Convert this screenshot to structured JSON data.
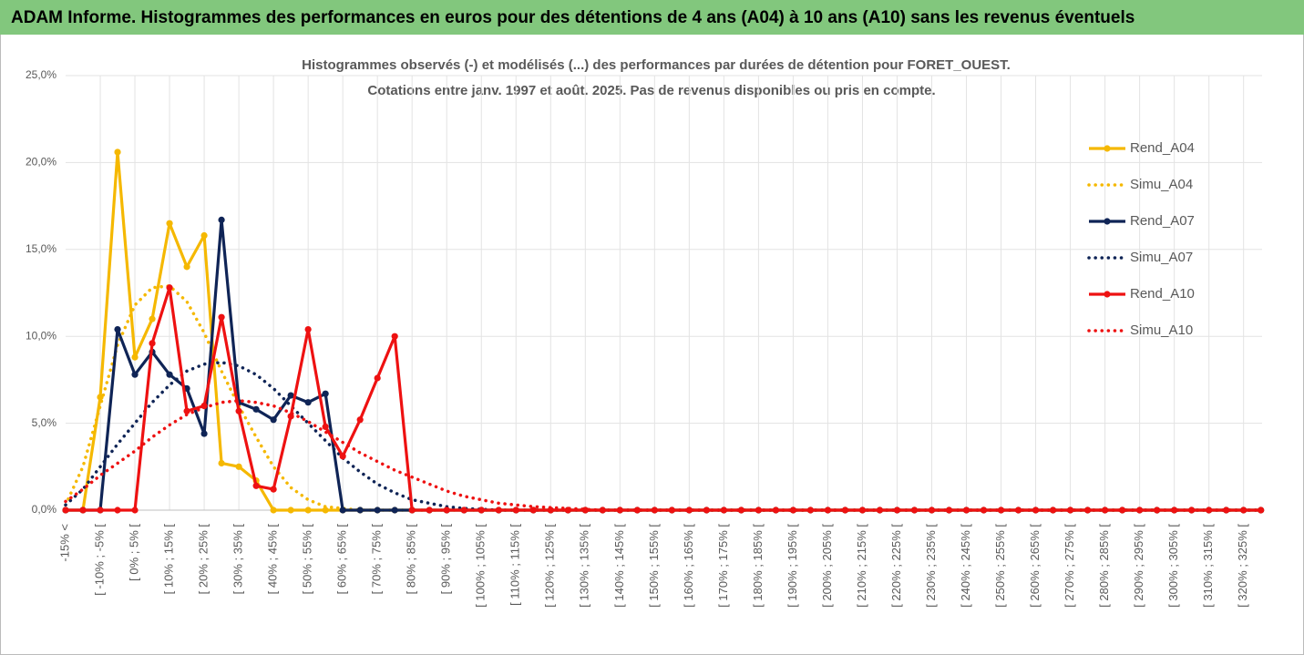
{
  "chart_data": {
    "type": "line",
    "header": "ADAM Informe. Histogrammes des performances en euros pour des détentions de 4 ans (A04) à 10 ans (A10) sans les revenus éventuels",
    "title": [
      "Histogrammes observés (-) et modélisés (...) des performances par durées de détention pour FORET_OUEST.",
      "Cotations entre janv. 1997 et août. 2025. Pas de revenus disponibles ou pris en compte."
    ],
    "categories": [
      "-15% <",
      null,
      "[ -10% ; -5% [",
      null,
      "[ 0% ; 5% [",
      null,
      "[ 10% ; 15% [",
      null,
      "[ 20% ; 25% [",
      null,
      "[ 30% ; 35% [",
      null,
      "[ 40% ; 45% [",
      null,
      "[ 50% ; 55% [",
      null,
      "[ 60% ; 65% [",
      null,
      "[ 70% ; 75% [",
      null,
      "[ 80% ; 85% [",
      null,
      "[ 90% ; 95% [",
      null,
      "[ 100% ; 105% [",
      null,
      "[ 110% ; 115% [",
      null,
      "[ 120% ; 125% [",
      null,
      "[ 130% ; 135% [",
      null,
      "[ 140% ; 145% [",
      null,
      "[ 150% ; 155% [",
      null,
      "[ 160% ; 165% [",
      null,
      "[ 170% ; 175% [",
      null,
      "[ 180% ; 185% [",
      null,
      "[ 190% ; 195% [",
      null,
      "[ 200% ; 205% [",
      null,
      "[ 210% ; 215% [",
      null,
      "[ 220% ; 225% [",
      null,
      "[ 230% ; 235% [",
      null,
      "[ 240% ; 245% [",
      null,
      "[ 250% ; 255% [",
      null,
      "[ 260% ; 265% [",
      null,
      "[ 270% ; 275% [",
      null,
      "[ 280% ; 285% [",
      null,
      "[ 290% ; 295% [",
      null,
      "[ 300% ; 305% [",
      null,
      "[ 310% ; 315% [",
      null,
      "[ 320% ; 325% [",
      null
    ],
    "series": [
      {
        "name": "Rend_A04",
        "color": "#f5b800",
        "style": "solid",
        "marker": true,
        "values": [
          0,
          0,
          6.5,
          20.6,
          8.8,
          11.0,
          16.5,
          14.0,
          15.8,
          2.7,
          2.5,
          1.7,
          0,
          0,
          0,
          0,
          0,
          0,
          0,
          0,
          0,
          0,
          0,
          0,
          0,
          0,
          0,
          0,
          0,
          0,
          0,
          0,
          0,
          0,
          0,
          0,
          0,
          0,
          0,
          0,
          0,
          0,
          0,
          0,
          0,
          0,
          0,
          0,
          0,
          0,
          0,
          0,
          0,
          0,
          0,
          0,
          0,
          0,
          0,
          0,
          0,
          0,
          0,
          0,
          0,
          0,
          0,
          0,
          0,
          0
        ]
      },
      {
        "name": "Simu_A04",
        "color": "#f5b800",
        "style": "dotted",
        "marker": false,
        "values": [
          0.3,
          2.5,
          6.0,
          9.5,
          11.8,
          12.8,
          12.9,
          12.0,
          10.2,
          8.0,
          6.0,
          4.2,
          2.5,
          1.3,
          0.6,
          0.2,
          0.1,
          0,
          0,
          0,
          0,
          0,
          0,
          0,
          0,
          0,
          0,
          0,
          0,
          0,
          0,
          0,
          0,
          0,
          0,
          0,
          0,
          0,
          0,
          0,
          0,
          0,
          0,
          0,
          0,
          0,
          0,
          0,
          0,
          0,
          0,
          0,
          0,
          0,
          0,
          0,
          0,
          0,
          0,
          0,
          0,
          0,
          0,
          0,
          0,
          0,
          0,
          0,
          0,
          0
        ]
      },
      {
        "name": "Rend_A07",
        "color": "#0f2456",
        "style": "solid",
        "marker": true,
        "values": [
          0,
          0,
          0,
          10.4,
          7.8,
          9.1,
          7.8,
          7.0,
          4.4,
          16.7,
          6.2,
          5.8,
          5.2,
          6.6,
          6.2,
          6.7,
          0,
          0,
          0,
          0,
          0,
          0,
          0,
          0,
          0,
          0,
          0,
          0,
          0,
          0,
          0,
          0,
          0,
          0,
          0,
          0,
          0,
          0,
          0,
          0,
          0,
          0,
          0,
          0,
          0,
          0,
          0,
          0,
          0,
          0,
          0,
          0,
          0,
          0,
          0,
          0,
          0,
          0,
          0,
          0,
          0,
          0,
          0,
          0,
          0,
          0,
          0,
          0,
          0,
          0
        ]
      },
      {
        "name": "Simu_A07",
        "color": "#0f2456",
        "style": "dotted",
        "marker": false,
        "values": [
          0.3,
          1.2,
          2.5,
          3.8,
          5.0,
          6.2,
          7.2,
          8.0,
          8.4,
          8.5,
          8.3,
          7.8,
          7.0,
          6.0,
          5.0,
          4.0,
          3.0,
          2.2,
          1.5,
          1.0,
          0.6,
          0.4,
          0.2,
          0.1,
          0.05,
          0,
          0,
          0,
          0,
          0,
          0,
          0,
          0,
          0,
          0,
          0,
          0,
          0,
          0,
          0,
          0,
          0,
          0,
          0,
          0,
          0,
          0,
          0,
          0,
          0,
          0,
          0,
          0,
          0,
          0,
          0,
          0,
          0,
          0,
          0,
          0,
          0,
          0,
          0,
          0,
          0,
          0,
          0,
          0,
          0
        ]
      },
      {
        "name": "Rend_A10",
        "color": "#ee1111",
        "style": "solid",
        "marker": true,
        "values": [
          0,
          0,
          0,
          0,
          0,
          9.6,
          12.8,
          5.7,
          6.0,
          11.1,
          5.7,
          1.4,
          1.2,
          5.4,
          10.4,
          4.8,
          3.1,
          5.2,
          7.6,
          10.0,
          0,
          0,
          0,
          0,
          0,
          0,
          0,
          0,
          0,
          0,
          0,
          0,
          0,
          0,
          0,
          0,
          0,
          0,
          0,
          0,
          0,
          0,
          0,
          0,
          0,
          0,
          0,
          0,
          0,
          0,
          0,
          0,
          0,
          0,
          0,
          0,
          0,
          0,
          0,
          0,
          0,
          0,
          0,
          0,
          0,
          0,
          0,
          0,
          0,
          0
        ]
      },
      {
        "name": "Simu_A10",
        "color": "#ee1111",
        "style": "dotted",
        "marker": false,
        "values": [
          0.5,
          1.2,
          2.0,
          2.7,
          3.4,
          4.2,
          4.9,
          5.5,
          5.9,
          6.2,
          6.3,
          6.2,
          6.0,
          5.6,
          5.1,
          4.5,
          3.9,
          3.3,
          2.8,
          2.3,
          1.9,
          1.5,
          1.1,
          0.8,
          0.6,
          0.4,
          0.3,
          0.2,
          0.15,
          0.1,
          0.05,
          0,
          0,
          0,
          0,
          0,
          0,
          0,
          0,
          0,
          0,
          0,
          0,
          0,
          0,
          0,
          0,
          0,
          0,
          0,
          0,
          0,
          0,
          0,
          0,
          0,
          0,
          0,
          0,
          0,
          0,
          0,
          0,
          0,
          0,
          0,
          0,
          0,
          0,
          0
        ]
      }
    ],
    "ylim": [
      0,
      25
    ],
    "yticks": [
      {
        "value": 0,
        "label": "0,0%"
      },
      {
        "value": 5,
        "label": "5,0%"
      },
      {
        "value": 10,
        "label": "10,0%"
      },
      {
        "value": 15,
        "label": "15,0%"
      },
      {
        "value": 20,
        "label": "20,0%"
      },
      {
        "value": 25,
        "label": "25,0%"
      }
    ],
    "grid": true,
    "legend": "top-right"
  }
}
